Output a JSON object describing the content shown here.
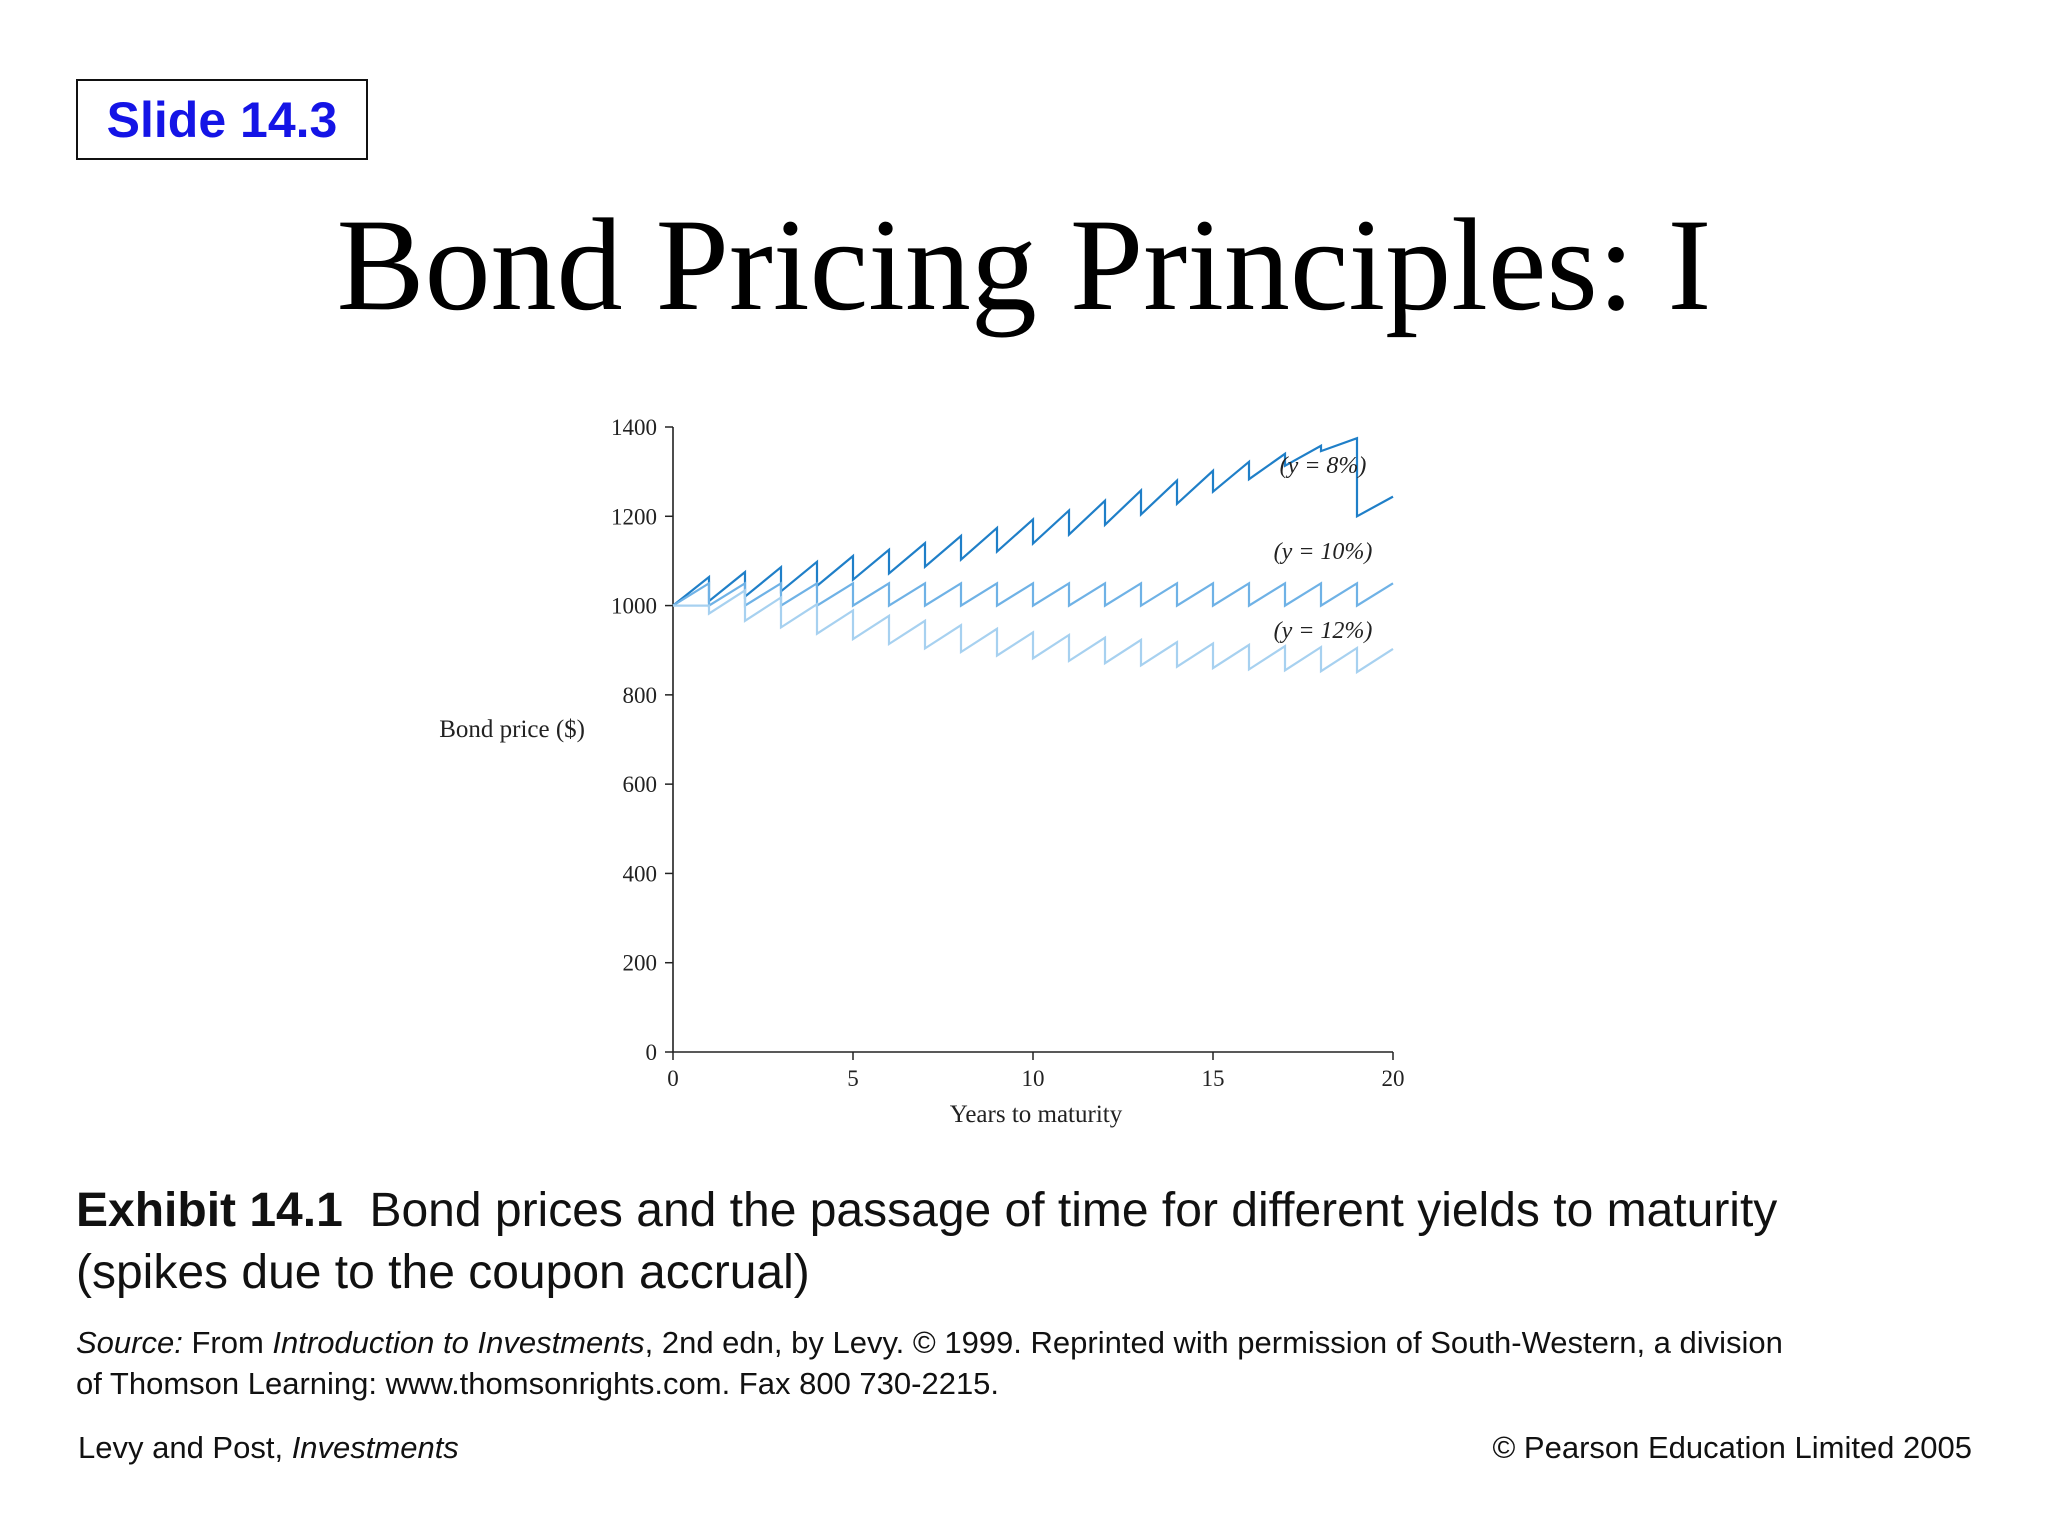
{
  "slide_label": "Slide 14.3",
  "title": "Bond Pricing Principles: I",
  "caption": {
    "exhibit": "Exhibit 14.1",
    "text_line1": "Bond prices and the passage of time for different yields to maturity",
    "text_line2": "(spikes due to the coupon accrual)"
  },
  "source": {
    "label": "Source:",
    "part1": " From ",
    "book": "Introduction to Investments",
    "part2": ", 2nd edn, by Levy. © 1999. Reprinted with permission of South-Western, a division",
    "line2": "of Thomson Learning: www.thomsonrights.com. Fax 800 730-2215."
  },
  "footer": {
    "authors": "Levy and Post, ",
    "book": "Investments",
    "copyright": "© Pearson Education Limited 2005"
  },
  "chart_data": {
    "type": "line",
    "xlabel": "Years to maturity",
    "ylabel": "Bond price ($)",
    "xlim": [
      0,
      20
    ],
    "ylim": [
      0,
      1400
    ],
    "xticks": [
      0,
      5,
      10,
      15,
      20
    ],
    "yticks": [
      0,
      200,
      400,
      600,
      800,
      1000,
      1200,
      1400
    ],
    "grid": false,
    "series": [
      {
        "name": "(y = 8%)",
        "color": "#1f7fc8",
        "lows": [
          1000,
          1010,
          1020,
          1032,
          1044,
          1058,
          1072,
          1087,
          1103,
          1121,
          1139,
          1159,
          1181,
          1204,
          1228,
          1255,
          1283,
          1313,
          1346,
          1200
        ],
        "highs": [
          1064,
          1075,
          1086,
          1098,
          1111,
          1125,
          1140,
          1156,
          1174,
          1193,
          1213,
          1235,
          1258,
          1280,
          1302,
          1322,
          1340,
          1358,
          1375,
          1244
        ]
      },
      {
        "name": "(y = 10%)",
        "color": "#6fb2e6",
        "lows": [
          1000,
          1000,
          1000,
          1000,
          1000,
          1000,
          1000,
          1000,
          1000,
          1000,
          1000,
          1000,
          1000,
          1000,
          1000,
          1000,
          1000,
          1000,
          1000,
          1000
        ],
        "highs": [
          1050,
          1050,
          1050,
          1050,
          1050,
          1050,
          1050,
          1050,
          1050,
          1050,
          1050,
          1050,
          1050,
          1050,
          1050,
          1050,
          1050,
          1050,
          1050,
          1050
        ]
      },
      {
        "name": "(y = 12%)",
        "color": "#a7d1f0",
        "lows": [
          1000,
          982,
          966,
          951,
          937,
          925,
          914,
          904,
          896,
          888,
          882,
          876,
          871,
          866,
          863,
          860,
          857,
          855,
          853,
          851
        ],
        "highs": [
          1000,
          1034,
          1018,
          1003,
          989,
          977,
          966,
          956,
          948,
          940,
          934,
          928,
          923,
          918,
          915,
          912,
          909,
          907,
          905,
          903
        ]
      }
    ],
    "series_labels": [
      "(y = 8%)",
      "(y = 10%)",
      "(y = 12%)"
    ]
  }
}
